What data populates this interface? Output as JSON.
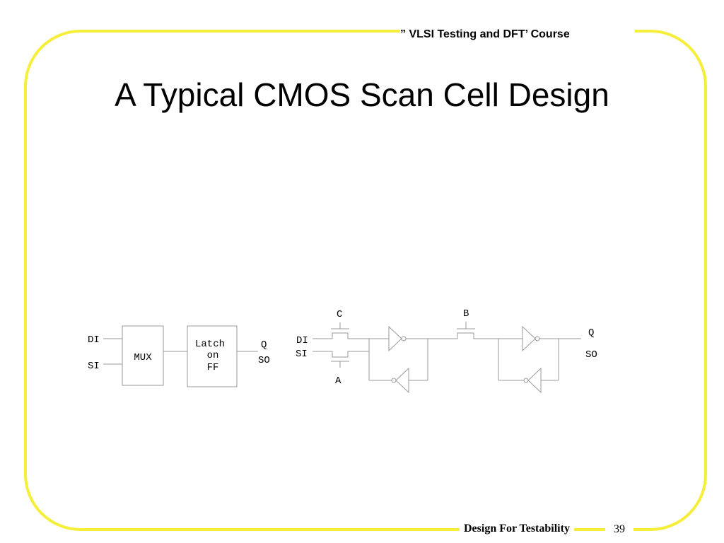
{
  "header": {
    "course_title": "” VLSI Testing and DFT’ Course"
  },
  "slide": {
    "title": "A Typical CMOS Scan Cell Design"
  },
  "footer": {
    "label": "Design For Testability",
    "page_number": "39"
  },
  "colors": {
    "frame": "#f5ee3a",
    "wire": "#9a9a9a",
    "text": "#000000"
  },
  "diagram": {
    "block_view": {
      "mux_inputs": [
        "DI",
        "SI"
      ],
      "mux_label": "MUX",
      "latch_label_lines": [
        "Latch",
        "on",
        "FF"
      ],
      "outputs": [
        "Q",
        "SO"
      ]
    },
    "transistor_view": {
      "inputs": [
        "DI",
        "SI"
      ],
      "gate_labels": {
        "top_gate": "C",
        "bottom_gate": "A",
        "pass_gate": "B"
      },
      "outputs": [
        "Q",
        "SO"
      ]
    }
  }
}
